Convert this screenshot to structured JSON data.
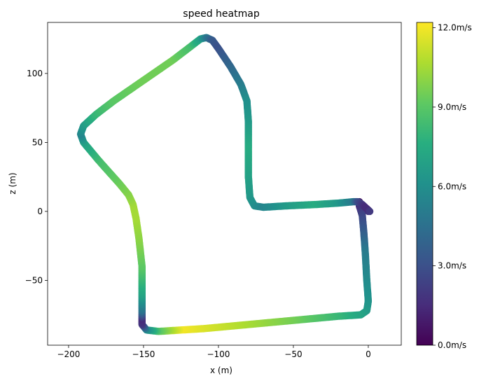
{
  "chart_data": {
    "type": "scatter",
    "title": "speed heatmap",
    "xlabel": "x (m)",
    "ylabel": "z (m)",
    "xlim": [
      -214,
      22
    ],
    "ylim": [
      -97,
      137
    ],
    "x_ticks": [
      -200,
      -150,
      -100,
      -50,
      0
    ],
    "x_tick_labels": [
      "−200",
      "−150",
      "−100",
      "−50",
      "0"
    ],
    "y_ticks": [
      -50,
      0,
      50,
      100
    ],
    "y_tick_labels": [
      "−50",
      "0",
      "50",
      "100"
    ],
    "grid": false,
    "colormap": "viridis",
    "colorbar": {
      "range": [
        0,
        12.2
      ],
      "ticks": [
        0,
        3,
        6,
        9,
        12
      ],
      "tick_labels": [
        "0.0m/s",
        "3.0m/s",
        "6.0m/s",
        "9.0m/s",
        "12.0m/s"
      ]
    },
    "path": [
      {
        "x": 0,
        "z": 0,
        "speed": 2.0
      },
      {
        "x": -3,
        "z": 3,
        "speed": 1.5
      },
      {
        "x": -6,
        "z": 7,
        "speed": 0.3
      },
      {
        "x": -6,
        "z": 4,
        "speed": 1.5
      },
      {
        "x": -4,
        "z": -3,
        "speed": 2.5
      },
      {
        "x": -3,
        "z": -15,
        "speed": 3.5
      },
      {
        "x": -2,
        "z": -30,
        "speed": 5.0
      },
      {
        "x": -1,
        "z": -50,
        "speed": 5.8
      },
      {
        "x": 0,
        "z": -65,
        "speed": 6.2
      },
      {
        "x": -1,
        "z": -72,
        "speed": 6.5
      },
      {
        "x": -5,
        "z": -75,
        "speed": 7.0
      },
      {
        "x": -20,
        "z": -76,
        "speed": 8.0
      },
      {
        "x": -50,
        "z": -79,
        "speed": 9.5
      },
      {
        "x": -80,
        "z": -82,
        "speed": 10.5
      },
      {
        "x": -110,
        "z": -85,
        "speed": 11.5
      },
      {
        "x": -125,
        "z": -86,
        "speed": 12.0
      },
      {
        "x": -140,
        "z": -87,
        "speed": 9.0
      },
      {
        "x": -148,
        "z": -86,
        "speed": 6.0
      },
      {
        "x": -151,
        "z": -82,
        "speed": 2.0
      },
      {
        "x": -151,
        "z": -78,
        "speed": 1.5
      },
      {
        "x": -151,
        "z": -72,
        "speed": 4.5
      },
      {
        "x": -151,
        "z": -60,
        "speed": 7.0
      },
      {
        "x": -151,
        "z": -40,
        "speed": 9.0
      },
      {
        "x": -153,
        "z": -20,
        "speed": 10.0
      },
      {
        "x": -155,
        "z": -5,
        "speed": 10.5
      },
      {
        "x": -157,
        "z": 5,
        "speed": 10.5
      },
      {
        "x": -160,
        "z": 12,
        "speed": 10.0
      },
      {
        "x": -166,
        "z": 20,
        "speed": 9.5
      },
      {
        "x": -180,
        "z": 37,
        "speed": 8.5
      },
      {
        "x": -190,
        "z": 50,
        "speed": 7.0
      },
      {
        "x": -192,
        "z": 56,
        "speed": 5.5
      },
      {
        "x": -190,
        "z": 62,
        "speed": 6.5
      },
      {
        "x": -182,
        "z": 70,
        "speed": 8.0
      },
      {
        "x": -170,
        "z": 80,
        "speed": 9.0
      },
      {
        "x": -150,
        "z": 95,
        "speed": 9.5
      },
      {
        "x": -130,
        "z": 110,
        "speed": 9.5
      },
      {
        "x": -118,
        "z": 120,
        "speed": 8.5
      },
      {
        "x": -112,
        "z": 125,
        "speed": 7.0
      },
      {
        "x": -108,
        "z": 126,
        "speed": 5.0
      },
      {
        "x": -104,
        "z": 124,
        "speed": 3.5
      },
      {
        "x": -100,
        "z": 118,
        "speed": 3.0
      },
      {
        "x": -92,
        "z": 105,
        "speed": 4.0
      },
      {
        "x": -85,
        "z": 92,
        "speed": 5.0
      },
      {
        "x": -81,
        "z": 80,
        "speed": 6.0
      },
      {
        "x": -80,
        "z": 65,
        "speed": 6.5
      },
      {
        "x": -80,
        "z": 45,
        "speed": 7.5
      },
      {
        "x": -80,
        "z": 25,
        "speed": 7.0
      },
      {
        "x": -79,
        "z": 10,
        "speed": 6.5
      },
      {
        "x": -76,
        "z": 4,
        "speed": 6.0
      },
      {
        "x": -70,
        "z": 3,
        "speed": 5.5
      },
      {
        "x": -55,
        "z": 4,
        "speed": 6.5
      },
      {
        "x": -35,
        "z": 5,
        "speed": 7.5
      },
      {
        "x": -20,
        "z": 6,
        "speed": 6.5
      },
      {
        "x": -10,
        "z": 7,
        "speed": 5.0
      },
      {
        "x": -7,
        "z": 7,
        "speed": 3.0
      },
      {
        "x": -4,
        "z": 5,
        "speed": 2.0
      },
      {
        "x": -2,
        "z": 3,
        "speed": 1.5
      },
      {
        "x": 0,
        "z": 1,
        "speed": 1.5
      },
      {
        "x": 1,
        "z": 0,
        "speed": 2.0
      }
    ]
  }
}
